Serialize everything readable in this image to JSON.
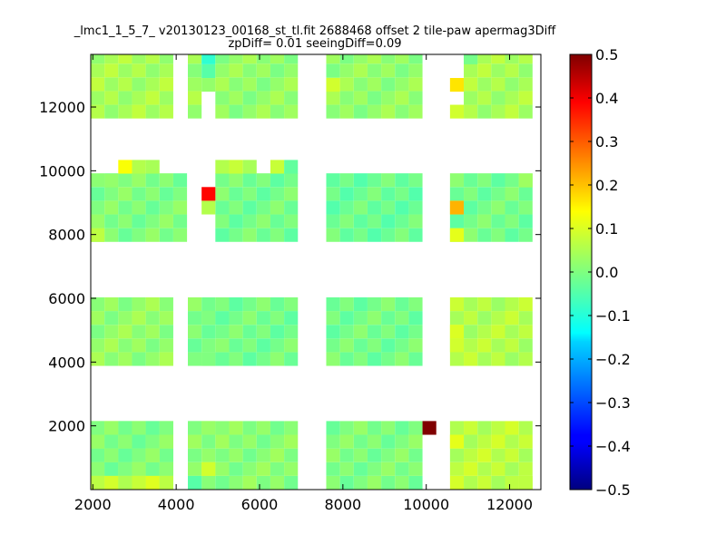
{
  "chart_data": {
    "type": "heatmap",
    "title": "_lmc1_1_5_7_ v20130123_00168_st_tl.fit 2688468 offset 2 tile-paw apermag3Diff",
    "subtitle": "zpDiff= 0.01 seeingDiff=0.09",
    "xlabel": "",
    "ylabel": "",
    "xlim": [
      1950,
      12750
    ],
    "ylim": [
      0,
      13650
    ],
    "x_ticks": [
      2000,
      4000,
      6000,
      8000,
      10000,
      12000
    ],
    "y_ticks": [
      2000,
      4000,
      6000,
      8000,
      10000,
      12000
    ],
    "colorbar": {
      "min": -0.5,
      "max": 0.5,
      "colormap": "jet",
      "ticks": [
        "0.5",
        "0.4",
        "0.3",
        "0.2",
        "0.1",
        "0.0",
        "−0.1",
        "−0.2",
        "−0.3",
        "−0.4",
        "−0.5"
      ]
    },
    "cell_size": [
      330,
      430
    ],
    "background_value": 0.0,
    "cells": [
      [
        1950,
        0,
        6,
        5,
        0.05
      ],
      [
        1950,
        430,
        6,
        4,
        0.0
      ],
      [
        1950,
        0,
        6,
        1,
        0.07
      ],
      [
        4280,
        0,
        2,
        5,
        0.02
      ],
      [
        4280,
        1720,
        2,
        1,
        0.0
      ],
      [
        4940,
        0,
        6,
        5,
        0.01
      ],
      [
        7600,
        0,
        7,
        5,
        0.0
      ],
      [
        9910,
        1720,
        1,
        1,
        0.5
      ],
      [
        10570,
        0,
        6,
        5,
        0.06
      ],
      [
        10570,
        1290,
        1,
        1,
        0.1
      ],
      [
        4610,
        430,
        1,
        1,
        0.08
      ],
      [
        4280,
        0,
        1,
        1,
        -0.04
      ],
      [
        12220,
        0,
        1,
        1,
        0.06
      ],
      [
        1950,
        3880,
        6,
        5,
        0.02
      ],
      [
        4280,
        3880,
        2,
        5,
        0.0
      ],
      [
        4610,
        3880,
        1,
        1,
        0.0
      ],
      [
        4610,
        5180,
        1,
        1,
        0.0
      ],
      [
        4940,
        3880,
        6,
        5,
        -0.01
      ],
      [
        7600,
        3880,
        7,
        5,
        -0.01
      ],
      [
        10570,
        3880,
        6,
        5,
        0.05
      ],
      [
        10570,
        4310,
        1,
        1,
        0.08
      ],
      [
        10570,
        4740,
        1,
        1,
        0.09
      ],
      [
        1950,
        7770,
        7,
        5,
        0.0
      ],
      [
        1950,
        7770,
        1,
        1,
        0.06
      ],
      [
        2280,
        9480,
        1,
        1,
        0.02
      ],
      [
        4940,
        7770,
        6,
        5,
        -0.01
      ],
      [
        4610,
        8630,
        1,
        1,
        0.05
      ],
      [
        4610,
        9060,
        1,
        1,
        0.37
      ],
      [
        7600,
        7770,
        7,
        5,
        -0.02
      ],
      [
        10570,
        7770,
        6,
        5,
        -0.01
      ],
      [
        10570,
        7770,
        1,
        1,
        0.1
      ],
      [
        10570,
        8630,
        1,
        1,
        0.2
      ],
      [
        12220,
        9480,
        1,
        1,
        0.03
      ],
      [
        2610,
        9910,
        1,
        1,
        0.12
      ],
      [
        2940,
        9910,
        1,
        1,
        0.05
      ],
      [
        3270,
        9910,
        1,
        1,
        0.04
      ],
      [
        4940,
        9910,
        1,
        1,
        0.05
      ],
      [
        5270,
        9910,
        1,
        1,
        0.07
      ],
      [
        5600,
        9910,
        1,
        1,
        0.04
      ],
      [
        6260,
        9910,
        1,
        1,
        0.07
      ],
      [
        6590,
        9910,
        1,
        1,
        -0.03
      ],
      [
        1950,
        11640,
        6,
        5,
        0.04
      ],
      [
        4280,
        11640,
        1,
        5,
        0.03
      ],
      [
        4610,
        13340,
        1,
        1,
        -0.08
      ],
      [
        4610,
        12910,
        1,
        1,
        -0.04
      ],
      [
        4610,
        12480,
        1,
        1,
        0.02
      ],
      [
        4940,
        11640,
        6,
        5,
        0.02
      ],
      [
        7600,
        11640,
        7,
        5,
        0.02
      ],
      [
        7600,
        12480,
        1,
        1,
        0.08
      ],
      [
        10570,
        12480,
        1,
        1,
        0.15
      ],
      [
        10570,
        11640,
        1,
        1,
        0.08
      ],
      [
        10900,
        11640,
        5,
        5,
        0.04
      ],
      [
        10900,
        13340,
        1,
        1,
        -0.01
      ]
    ]
  }
}
